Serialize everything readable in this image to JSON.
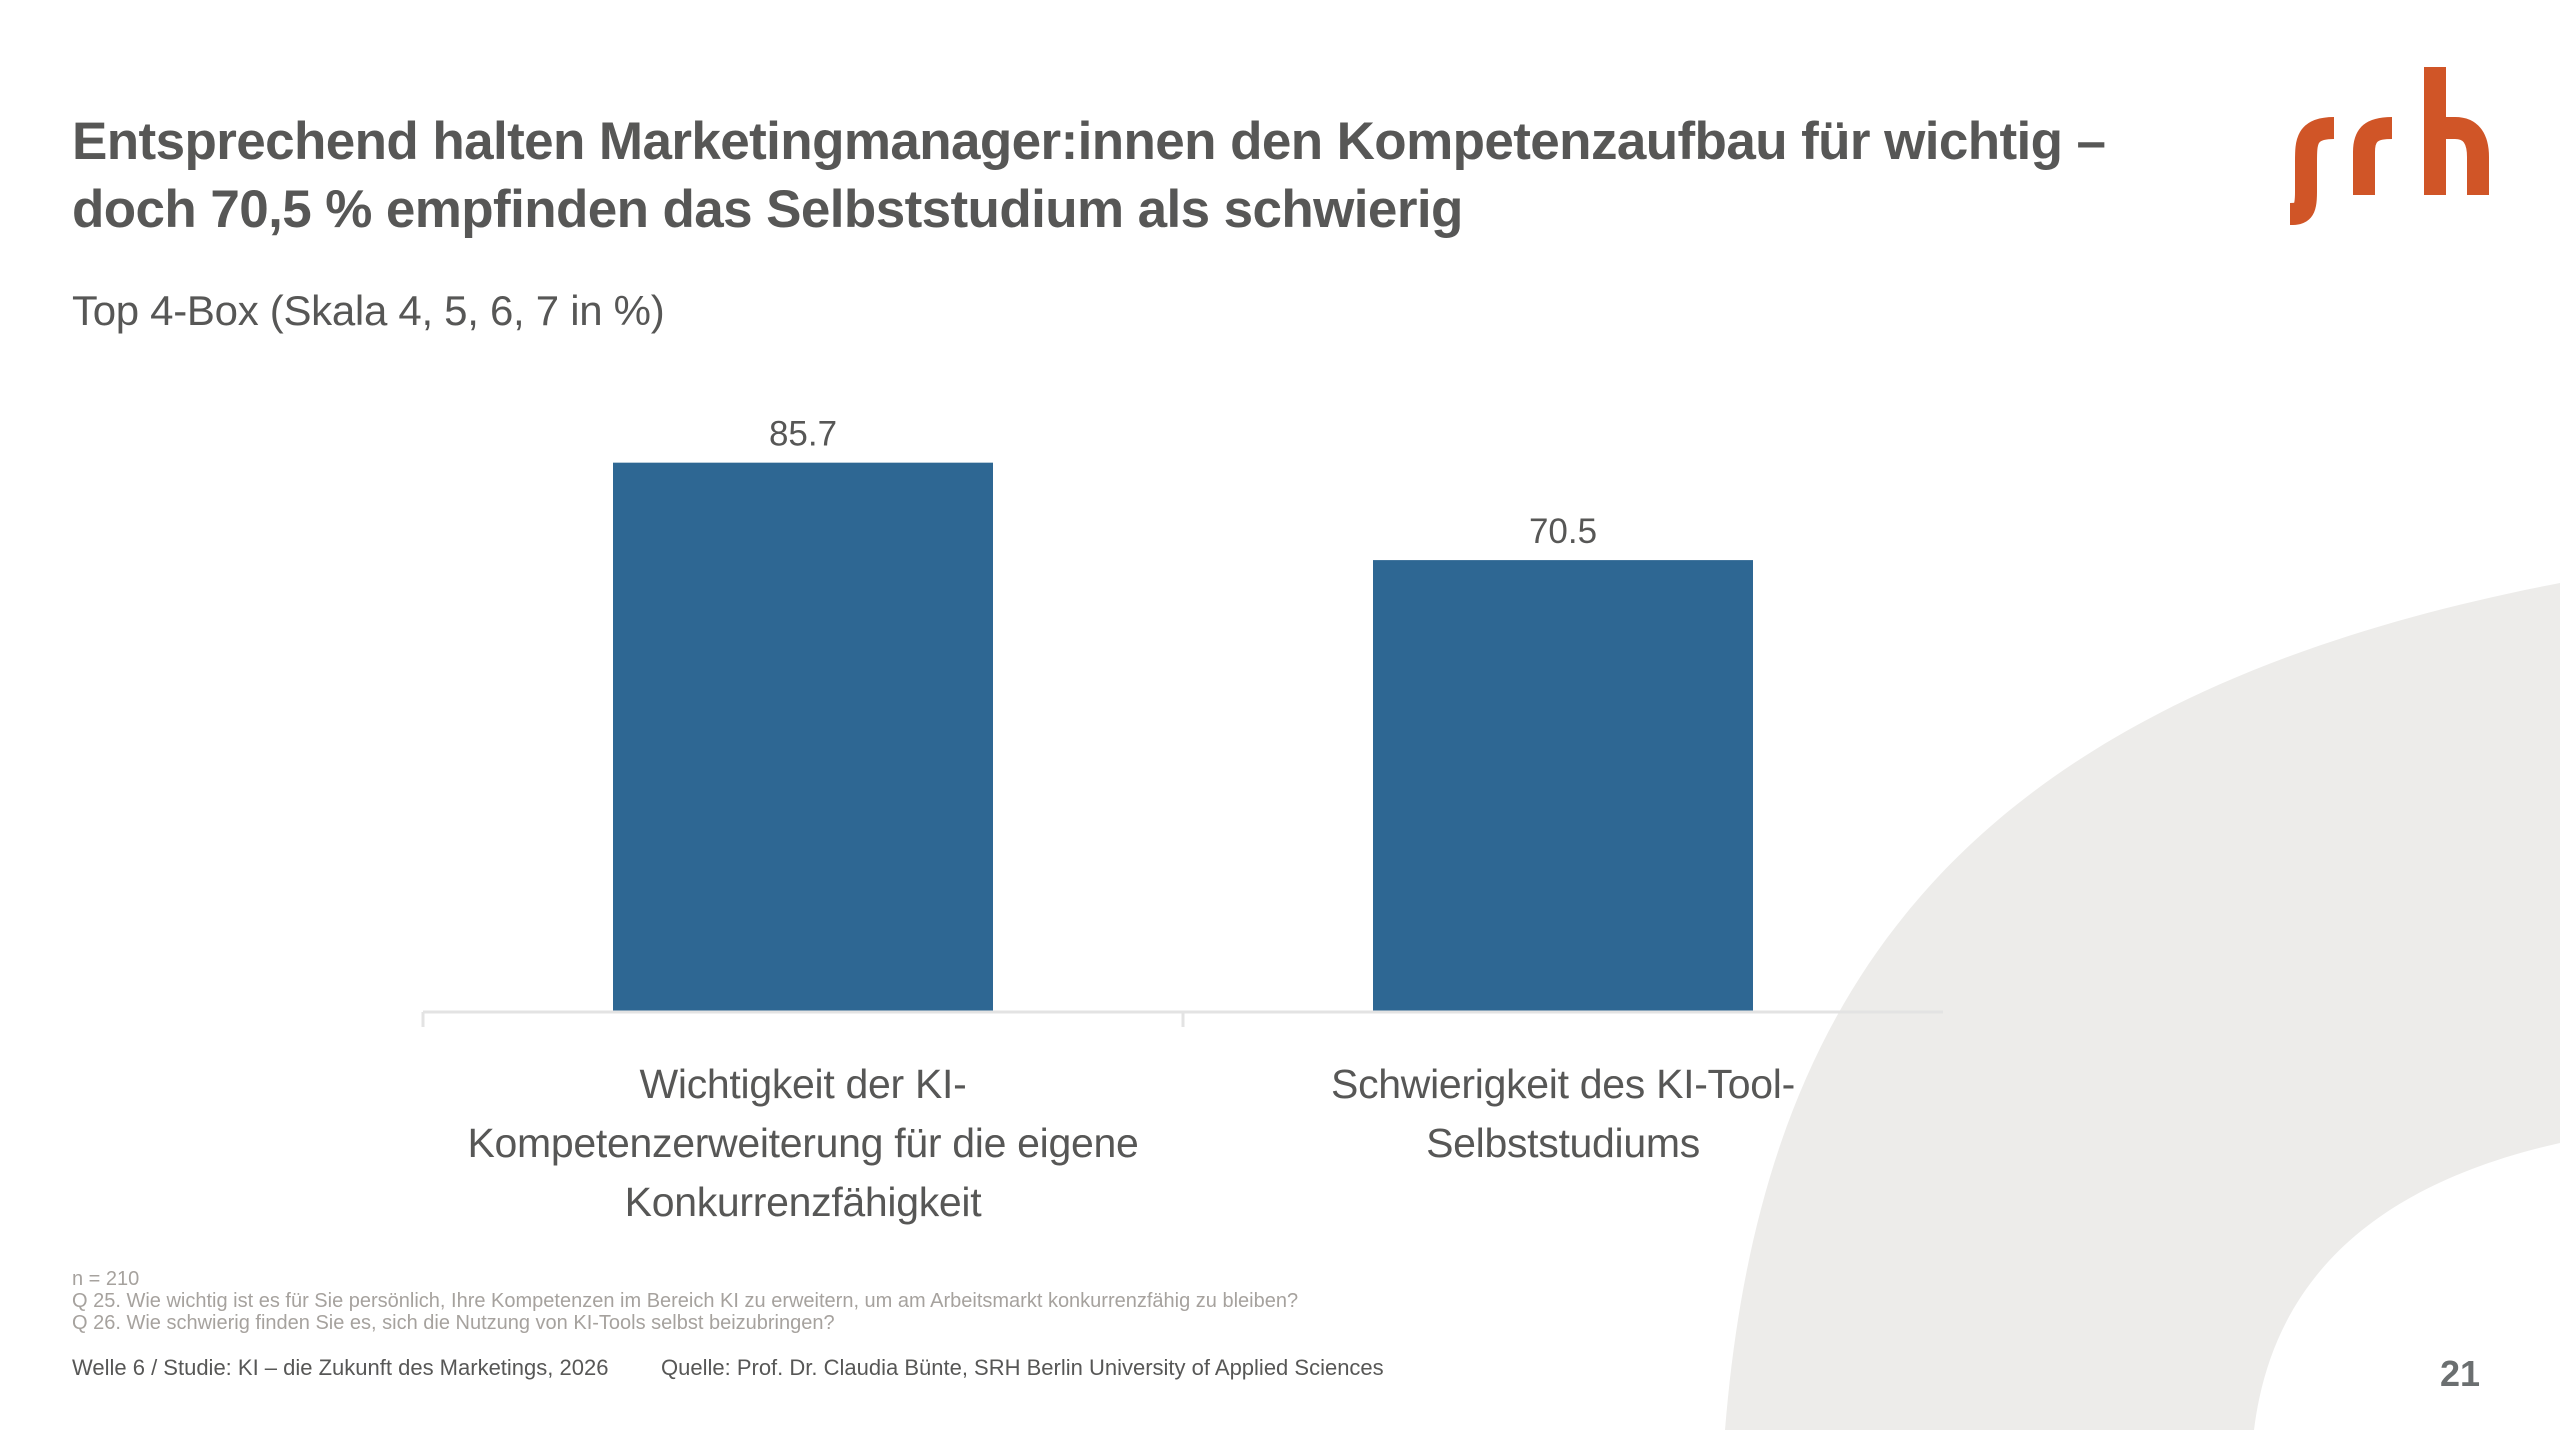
{
  "slide": {
    "title_line1": "Entsprechend halten Marketingmanager:innen den Kompetenzaufbau für wichtig –",
    "title_line2": "doch 70,5 % empfinden das Selbststudium als schwierig",
    "subtitle": "Top 4-Box (Skala 4, 5, 6, 7 in %)",
    "logo_text": "srh",
    "page_number": "21"
  },
  "colors": {
    "bar": "#2E6793",
    "logo": "#D05527",
    "arc": "#EDECEA",
    "text": "#575756",
    "notes": "#A6A29E"
  },
  "notes": {
    "sample": "n = 210",
    "q25": "Q 25. Wie wichtig ist es für Sie persönlich, Ihre Kompetenzen im Bereich KI zu erweitern, um am Arbeitsmarkt konkurrenzfähig zu bleiben?",
    "q26": "Q 26. Wie schwierig finden Sie es, sich die Nutzung von KI-Tools selbst beizubringen?"
  },
  "footer": {
    "study": "Welle 6 / Studie: KI – die Zukunft des Marketings, 2026",
    "source": "Quelle: Prof. Dr. Claudia Bünte, SRH Berlin University of Applied Sciences"
  },
  "chart_data": {
    "type": "bar",
    "title": "Top 4-Box (Skala 4, 5, 6, 7 in %)",
    "xlabel": "",
    "ylabel": "",
    "ylim": [
      0,
      100
    ],
    "grid": false,
    "legend": "none",
    "categories": [
      "Wichtigkeit der KI-Kompetenzerweiterung für die eigene Konkurrenzfähigkeit",
      "Schwierigkeit des KI-Tool-Selbststudiums"
    ],
    "category_label_lines": [
      [
        "Wichtigkeit der KI-",
        "Kompetenzerweiterung für die eigene",
        "Konkurrenzfähigkeit"
      ],
      [
        "Schwierigkeit des KI-Tool-",
        "Selbststudiums"
      ]
    ],
    "values": [
      85.7,
      70.5
    ],
    "data_labels": [
      "85.7",
      "70.5"
    ]
  }
}
